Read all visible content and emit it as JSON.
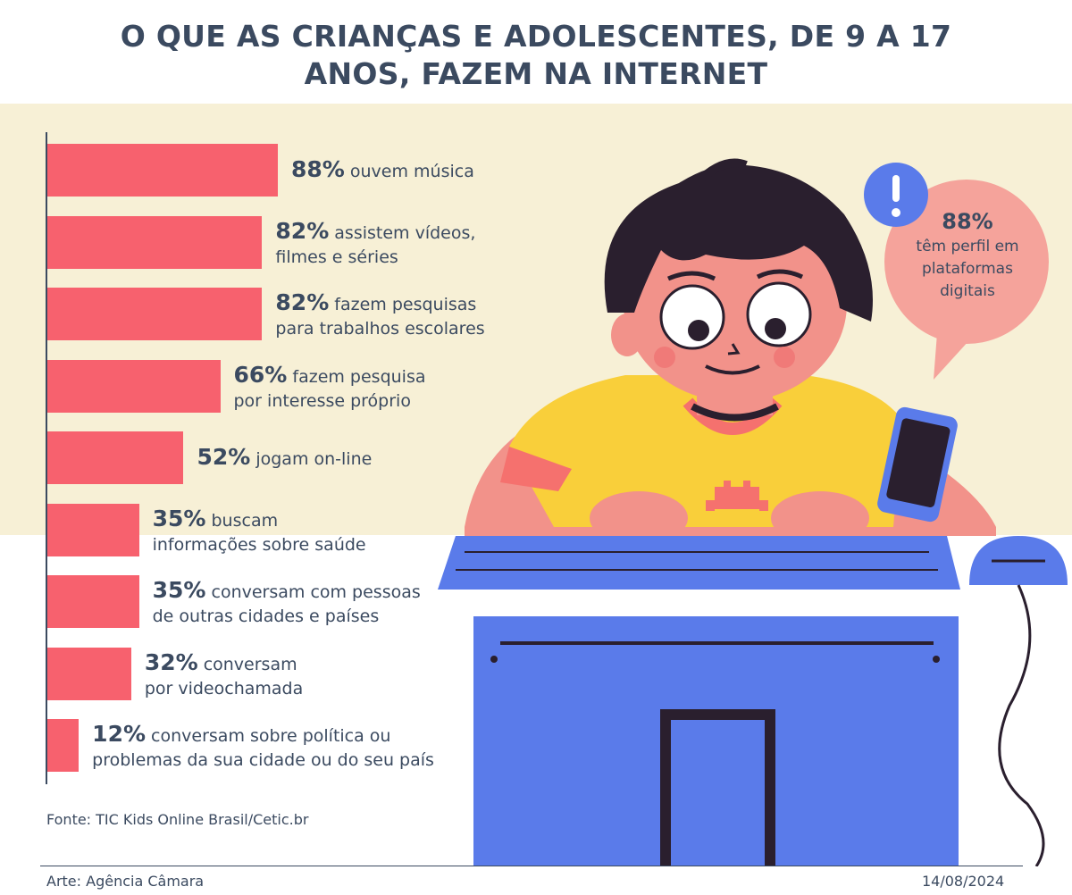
{
  "title": {
    "line1": "O QUE AS CRIANÇAS E ADOLESCENTES, DE 9 A 17",
    "line2": "ANOS, FAZEM NA INTERNET"
  },
  "chart_data": {
    "type": "bar",
    "orientation": "horizontal",
    "title": "O QUE AS CRIANÇAS E ADOLESCENTES, DE 9 A 17 ANOS, FAZEM NA INTERNET",
    "xlim": [
      0,
      100
    ],
    "grid": false,
    "bar_color": "#f7616e",
    "items": [
      {
        "value": 88,
        "pct": "88%",
        "line1": "ouvem música",
        "line2": ""
      },
      {
        "value": 82,
        "pct": "82%",
        "line1": "assistem vídeos,",
        "line2": "filmes e séries"
      },
      {
        "value": 82,
        "pct": "82%",
        "line1": "fazem pesquisas",
        "line2": "para trabalhos escolares"
      },
      {
        "value": 66,
        "pct": "66%",
        "line1": "fazem pesquisa",
        "line2": "por interesse próprio"
      },
      {
        "value": 52,
        "pct": "52%",
        "line1": "jogam on-line",
        "line2": ""
      },
      {
        "value": 35,
        "pct": "35%",
        "line1": "buscam",
        "line2": "informações sobre saúde"
      },
      {
        "value": 35,
        "pct": "35%",
        "line1": "conversam com pessoas",
        "line2": "de outras cidades e países"
      },
      {
        "value": 32,
        "pct": "32%",
        "line1": "conversam",
        "line2": "por videochamada"
      },
      {
        "value": 12,
        "pct": "12%",
        "line1": "conversam sobre política ou",
        "line2": "problemas da sua cidade ou do seu país"
      }
    ]
  },
  "callout": {
    "pct": "88%",
    "text_line1": "têm perfil em",
    "text_line2": "plataformas",
    "text_line3": "digitais",
    "icon": "exclamation-icon"
  },
  "source": "Fonte: TIC Kids Online Brasil/Cetic.br",
  "credit": "Arte: Agência Câmara",
  "date": "14/08/2024",
  "colors": {
    "text": "#3b4a60",
    "bar": "#f7616e",
    "band": "#f7f0d6",
    "monitor": "#5a7bea",
    "shirt": "#f9cf3a",
    "skin": "#f2928a",
    "hair": "#2a1f2e"
  }
}
